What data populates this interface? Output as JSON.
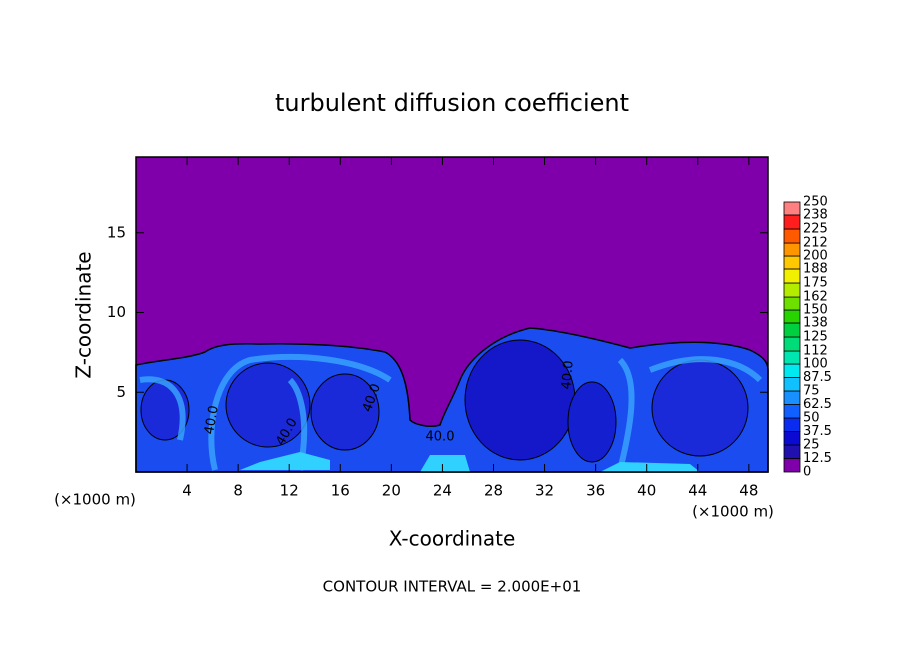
{
  "chart_data": {
    "type": "contour",
    "title": "turbulent diffusion coefficient",
    "x_label": "X-coordinate",
    "y_label": "Z-coordinate",
    "x_unit": "(×1000 m)",
    "y_unit": "(×1000 m)",
    "note": "CONTOUR INTERVAL = 2.000E+01",
    "contour_labels": [
      "40.0",
      "40.0",
      "40.0",
      "40.0",
      "40.0"
    ],
    "xlim": [
      0,
      49.5
    ],
    "xticks": [
      4,
      8,
      12,
      16,
      20,
      24,
      28,
      32,
      36,
      40,
      44,
      48
    ],
    "ylim": [
      0,
      19.75
    ],
    "yticks": [
      5,
      10,
      15
    ],
    "colorbar": {
      "levels": [
        0,
        12.5,
        25,
        37.5,
        50,
        62.5,
        75,
        87.5,
        100,
        112,
        125,
        138,
        150,
        162,
        175,
        188,
        200,
        212,
        225,
        238,
        250
      ],
      "colors": [
        "#7f00aa",
        "#2010b0",
        "#0a0ad2",
        "#0a2cf0",
        "#1060ff",
        "#1890ff",
        "#10c0ff",
        "#00e8f0",
        "#00e6b0",
        "#00dc78",
        "#00d040",
        "#28d400",
        "#6ee000",
        "#b4ec00",
        "#f0f000",
        "#ffc800",
        "#ff9600",
        "#ff5a00",
        "#ff1e1e",
        "#ff8080"
      ]
    }
  }
}
